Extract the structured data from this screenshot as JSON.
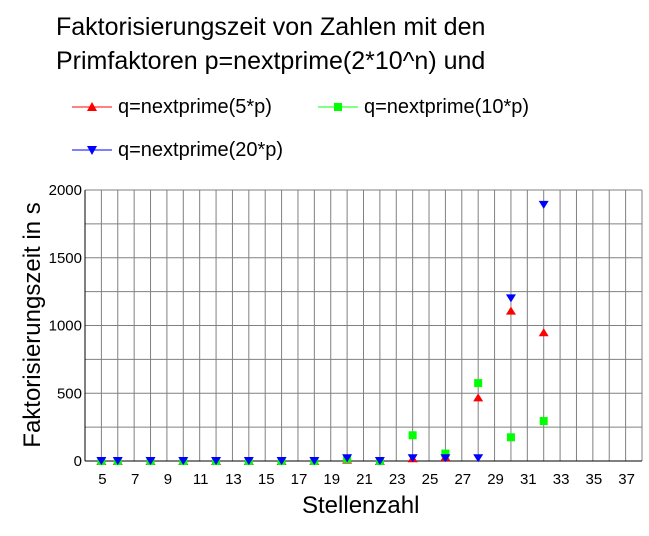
{
  "chart_data": {
    "type": "scatter",
    "title": [
      "Faktorisierungszeit von Zahlen mit den",
      "Primfaktoren p=nextprime(2*10^n) und"
    ],
    "xlabel": "Stellenzahl",
    "ylabel": "Faktorisierungszeit in s",
    "xlim": [
      4,
      38
    ],
    "ylim": [
      0,
      2000
    ],
    "xticks": [
      5,
      7,
      9,
      11,
      13,
      15,
      17,
      19,
      21,
      23,
      25,
      27,
      29,
      31,
      33,
      35,
      37
    ],
    "xtick_labels": [
      "5",
      "7",
      "9",
      "11",
      "13",
      "15",
      "17",
      "19",
      "21",
      "23",
      "25",
      "27",
      "29",
      "31",
      "33",
      "35",
      "37"
    ],
    "yticks": [
      0,
      500,
      1000,
      1500,
      2000
    ],
    "ytick_labels": [
      "0",
      "500",
      "1000",
      "1500",
      "2000"
    ],
    "grid": true,
    "legend_placement": "top",
    "series": [
      {
        "name": "q=nextprime(5*p)",
        "color": "#ff0000",
        "marker": "triangle-up",
        "x": [
          5,
          6,
          8,
          10,
          12,
          14,
          16,
          18,
          20,
          22,
          24,
          26,
          28,
          30,
          32
        ],
        "y": [
          0,
          0,
          0,
          0,
          0,
          0,
          0,
          0,
          10,
          0,
          20,
          30,
          470,
          1110,
          950
        ]
      },
      {
        "name": "q=nextprime(10*p)",
        "color": "#00ff00",
        "marker": "square",
        "x": [
          5,
          6,
          8,
          10,
          12,
          14,
          16,
          18,
          20,
          22,
          24,
          26,
          28,
          30,
          32
        ],
        "y": [
          0,
          0,
          0,
          0,
          0,
          0,
          0,
          0,
          15,
          0,
          190,
          55,
          575,
          175,
          295
        ]
      },
      {
        "name": "q=nextprime(20*p)",
        "color": "#0000ff",
        "marker": "triangle-down",
        "x": [
          5,
          6,
          8,
          10,
          12,
          14,
          16,
          18,
          20,
          22,
          24,
          26,
          28,
          30,
          32
        ],
        "y": [
          0,
          0,
          0,
          0,
          0,
          0,
          0,
          0,
          20,
          0,
          20,
          20,
          20,
          1200,
          1890
        ]
      }
    ]
  }
}
